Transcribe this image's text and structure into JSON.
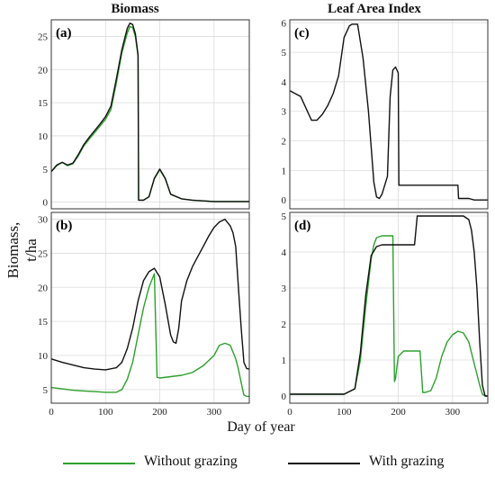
{
  "columns": {
    "left_title": "Biomass",
    "right_title": "Leaf Area Index"
  },
  "shared": {
    "ylabel": "Biomass, t/ha",
    "xlabel": "Day of year"
  },
  "legend": {
    "without_label": "Without grazing",
    "with_label": "With grazing",
    "without_color": "#2ca02c",
    "with_color": "#111111"
  },
  "chart_data": [
    {
      "id": "a",
      "panel_label": "(a)",
      "type": "line",
      "xlim": [
        0,
        365
      ],
      "ylim": [
        -1,
        27.5
      ],
      "yticks": [
        0,
        5,
        10,
        15,
        20,
        25
      ],
      "xticks": [
        0,
        100,
        200,
        300
      ],
      "xtick_labels_shown": false,
      "grid": true,
      "series": [
        {
          "name": "Without grazing",
          "color": "#2ca02c",
          "x": [
            0,
            10,
            20,
            30,
            40,
            50,
            60,
            70,
            80,
            90,
            100,
            110,
            120,
            130,
            140,
            145,
            150,
            155,
            160,
            161,
            170,
            180,
            190,
            200,
            210,
            220,
            240,
            260,
            280,
            300,
            320,
            340,
            360,
            365
          ],
          "y": [
            4.6,
            5.5,
            6.0,
            5.5,
            5.8,
            7.0,
            8.5,
            9.5,
            10.5,
            11.5,
            12.5,
            14.0,
            18.0,
            22.5,
            25.5,
            26.5,
            26.3,
            25.0,
            22.0,
            0.3,
            0.3,
            0.8,
            3.5,
            4.9,
            3.5,
            1.2,
            0.5,
            0.3,
            0.2,
            0.1,
            0.1,
            0.1,
            0.1,
            0.1
          ]
        },
        {
          "name": "With grazing",
          "color": "#111111",
          "x": [
            0,
            10,
            20,
            30,
            40,
            50,
            60,
            70,
            80,
            90,
            100,
            110,
            120,
            130,
            140,
            145,
            150,
            155,
            160,
            161,
            170,
            180,
            190,
            200,
            210,
            220,
            240,
            260,
            280,
            300,
            320,
            340,
            360,
            365
          ],
          "y": [
            4.6,
            5.6,
            6.0,
            5.6,
            5.9,
            7.2,
            8.7,
            9.8,
            10.8,
            11.8,
            12.9,
            14.5,
            18.6,
            23.0,
            26.2,
            27.0,
            26.8,
            25.4,
            22.2,
            0.3,
            0.3,
            0.8,
            3.6,
            5.0,
            3.6,
            1.2,
            0.5,
            0.3,
            0.2,
            0.1,
            0.1,
            0.1,
            0.1,
            0.1
          ]
        }
      ]
    },
    {
      "id": "b",
      "panel_label": "(b)",
      "type": "line",
      "xlim": [
        0,
        365
      ],
      "ylim": [
        3,
        31
      ],
      "yticks": [
        5,
        10,
        15,
        20,
        25,
        30
      ],
      "xticks": [
        0,
        100,
        200,
        300
      ],
      "xtick_labels": [
        "0",
        "100",
        "200",
        "300"
      ],
      "grid": true,
      "series": [
        {
          "name": "Without grazing",
          "color": "#2ca02c",
          "x": [
            0,
            20,
            40,
            60,
            80,
            100,
            120,
            130,
            140,
            150,
            160,
            170,
            180,
            190,
            195,
            200,
            220,
            240,
            260,
            280,
            300,
            310,
            320,
            330,
            340,
            345,
            350,
            355,
            360,
            365
          ],
          "y": [
            5.3,
            5.1,
            4.9,
            4.8,
            4.7,
            4.6,
            4.6,
            5.0,
            6.5,
            9.0,
            13.0,
            17.0,
            20.0,
            22.0,
            6.8,
            6.7,
            6.9,
            7.1,
            7.5,
            8.5,
            10.0,
            11.5,
            11.8,
            11.5,
            9.5,
            8.0,
            6.0,
            4.2,
            4.0,
            4.0
          ]
        },
        {
          "name": "With grazing",
          "color": "#111111",
          "x": [
            0,
            20,
            40,
            60,
            80,
            100,
            120,
            130,
            140,
            150,
            160,
            170,
            180,
            190,
            200,
            210,
            220,
            225,
            230,
            235,
            240,
            250,
            260,
            270,
            280,
            290,
            300,
            310,
            320,
            330,
            335,
            340,
            345,
            350,
            355,
            360,
            365
          ],
          "y": [
            9.5,
            9.0,
            8.6,
            8.2,
            8.0,
            7.9,
            8.2,
            9.0,
            11.0,
            14.0,
            18.0,
            21.0,
            22.3,
            22.8,
            21.5,
            17.5,
            13.0,
            12.0,
            11.8,
            14.0,
            18.0,
            21.0,
            23.0,
            24.5,
            26.0,
            27.5,
            28.8,
            29.6,
            30.0,
            29.0,
            28.0,
            26.0,
            20.0,
            14.0,
            9.0,
            8.1,
            8.0
          ]
        }
      ]
    },
    {
      "id": "c",
      "panel_label": "(c)",
      "type": "line",
      "xlim": [
        0,
        365
      ],
      "ylim": [
        -0.3,
        6.1
      ],
      "yticks": [
        0,
        1,
        2,
        3,
        4,
        5,
        6
      ],
      "xticks": [
        0,
        100,
        200,
        300
      ],
      "xtick_labels_shown": false,
      "grid": true,
      "series": [
        {
          "name": "With grazing",
          "color": "#111111",
          "x": [
            0,
            10,
            20,
            30,
            40,
            50,
            60,
            70,
            80,
            90,
            100,
            110,
            115,
            125,
            135,
            145,
            150,
            155,
            160,
            165,
            170,
            180,
            185,
            190,
            195,
            200,
            201,
            230,
            260,
            300,
            310,
            311,
            330,
            340,
            350,
            365
          ],
          "y": [
            3.7,
            3.6,
            3.5,
            3.1,
            2.7,
            2.7,
            2.9,
            3.2,
            3.6,
            4.2,
            5.5,
            5.9,
            5.95,
            5.95,
            4.8,
            3.0,
            1.8,
            0.6,
            0.1,
            0.05,
            0.2,
            0.8,
            3.5,
            4.4,
            4.5,
            4.3,
            0.5,
            0.5,
            0.5,
            0.5,
            0.5,
            0.05,
            0.05,
            0.0,
            0.0,
            0.0
          ]
        }
      ]
    },
    {
      "id": "d",
      "panel_label": "(d)",
      "type": "line",
      "xlim": [
        0,
        365
      ],
      "ylim": [
        -0.2,
        5.1
      ],
      "yticks": [
        0,
        1,
        2,
        3,
        4,
        5
      ],
      "xticks": [
        0,
        100,
        200,
        300
      ],
      "xtick_labels": [
        "0",
        "100",
        "200",
        "300"
      ],
      "grid": true,
      "series": [
        {
          "name": "Without grazing",
          "color": "#2ca02c",
          "x": [
            0,
            50,
            100,
            120,
            130,
            140,
            150,
            155,
            160,
            170,
            180,
            190,
            193,
            195,
            200,
            210,
            220,
            230,
            240,
            245,
            250,
            260,
            270,
            280,
            290,
            300,
            310,
            320,
            330,
            340,
            350,
            355,
            360,
            365
          ],
          "y": [
            0.05,
            0.05,
            0.05,
            0.2,
            1.0,
            2.5,
            3.8,
            4.2,
            4.4,
            4.45,
            4.45,
            4.45,
            0.4,
            0.5,
            1.1,
            1.25,
            1.25,
            1.25,
            1.25,
            0.1,
            0.1,
            0.15,
            0.5,
            1.1,
            1.5,
            1.7,
            1.8,
            1.75,
            1.5,
            0.9,
            0.3,
            0.05,
            0.0,
            0.0
          ]
        },
        {
          "name": "With grazing",
          "color": "#111111",
          "x": [
            0,
            50,
            100,
            120,
            130,
            140,
            150,
            160,
            170,
            180,
            190,
            200,
            210,
            220,
            230,
            235,
            240,
            260,
            280,
            300,
            320,
            330,
            335,
            340,
            345,
            350,
            355,
            360,
            365
          ],
          "y": [
            0.05,
            0.05,
            0.05,
            0.2,
            1.2,
            2.8,
            3.9,
            4.15,
            4.2,
            4.2,
            4.2,
            4.2,
            4.2,
            4.2,
            4.2,
            5.0,
            5.0,
            5.0,
            5.0,
            5.0,
            5.0,
            4.9,
            4.6,
            4.0,
            3.0,
            1.5,
            0.3,
            0.0,
            0.0
          ]
        }
      ]
    }
  ]
}
